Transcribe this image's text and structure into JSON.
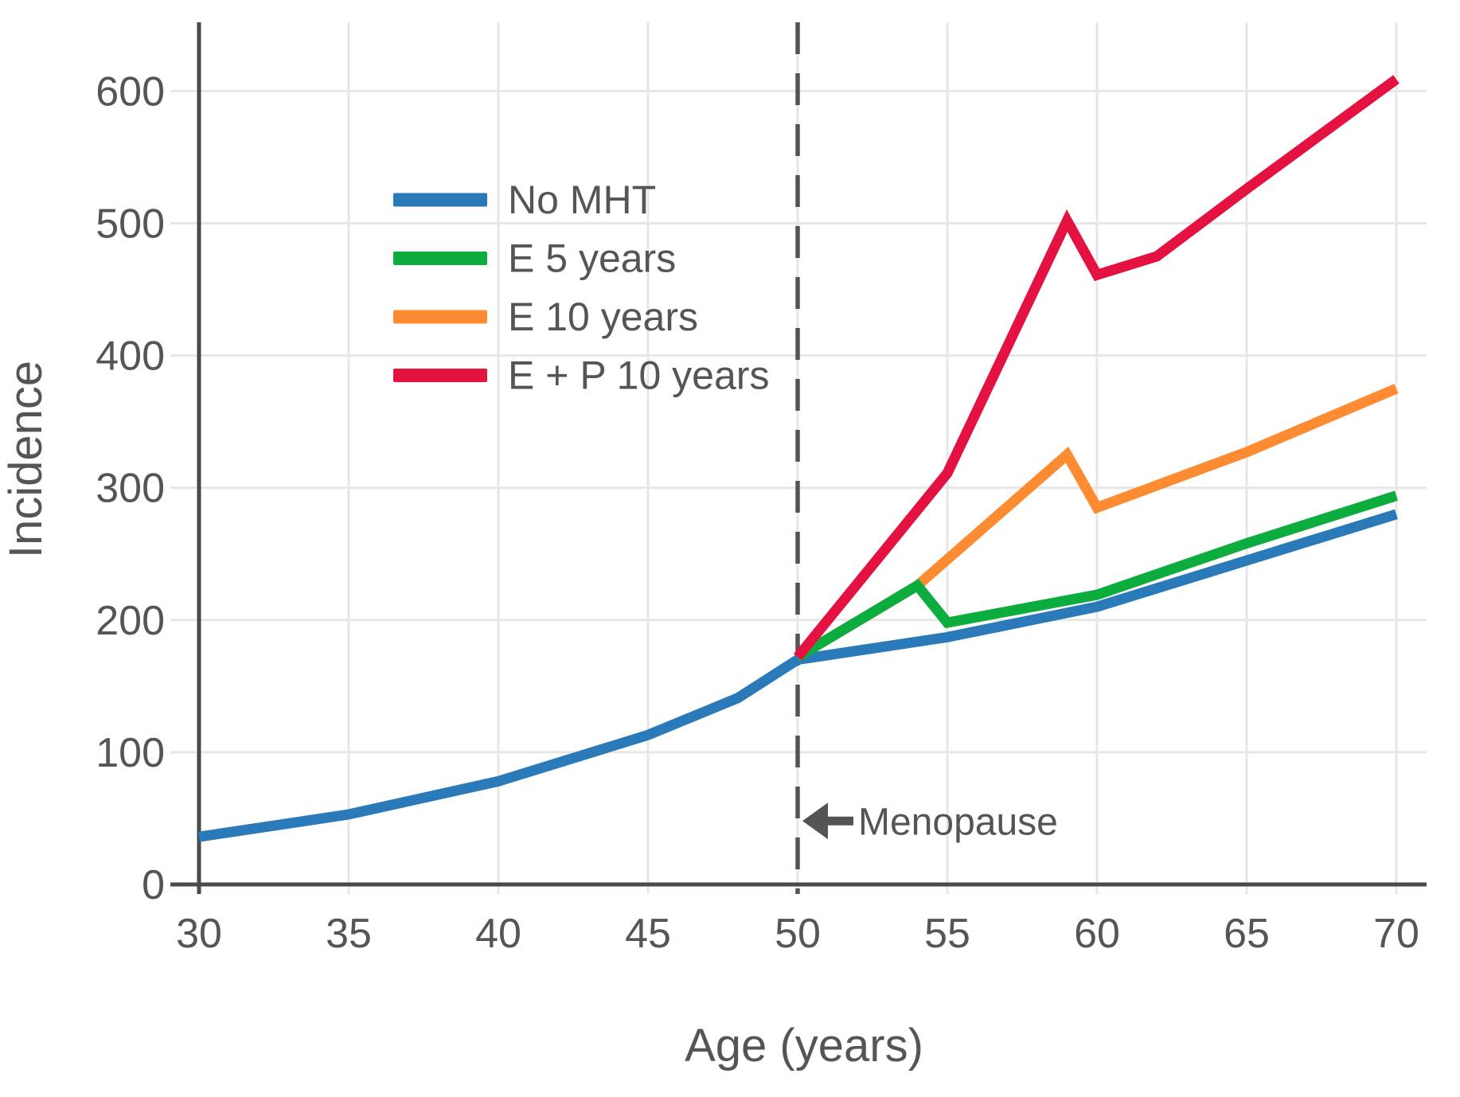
{
  "chart_data": {
    "type": "line",
    "title": "",
    "xlabel": "Age (years)",
    "ylabel": "Incidence",
    "x_ticks": [
      30,
      35,
      40,
      45,
      50,
      55,
      60,
      65,
      70
    ],
    "y_ticks": [
      0,
      100,
      200,
      300,
      400,
      500,
      600
    ],
    "xlim": [
      30,
      71
    ],
    "ylim": [
      0,
      650
    ],
    "grid": true,
    "legend_position": "upper-left-inside",
    "series": [
      {
        "name": "No MHT",
        "color": "#2a7ab9",
        "points": [
          [
            30,
            36
          ],
          [
            35,
            53
          ],
          [
            40,
            78
          ],
          [
            45,
            113
          ],
          [
            48,
            141
          ],
          [
            50,
            170
          ],
          [
            55,
            187
          ],
          [
            60,
            210
          ],
          [
            65,
            245
          ],
          [
            70,
            280
          ]
        ]
      },
      {
        "name": "E 5 years",
        "color": "#0cac3e",
        "points": [
          [
            50,
            172
          ],
          [
            54,
            226
          ],
          [
            55,
            198
          ],
          [
            60,
            219
          ],
          [
            65,
            258
          ],
          [
            70,
            294
          ]
        ]
      },
      {
        "name": "E 10 years",
        "color": "#fd8b31",
        "points": [
          [
            50,
            172
          ],
          [
            54,
            226
          ],
          [
            59,
            325
          ],
          [
            60,
            285
          ],
          [
            65,
            327
          ],
          [
            70,
            375
          ]
        ]
      },
      {
        "name": "E + P 10 years",
        "color": "#e31240",
        "points": [
          [
            50,
            172
          ],
          [
            55,
            311
          ],
          [
            59,
            502
          ],
          [
            60,
            461
          ],
          [
            62,
            475
          ],
          [
            65,
            526
          ],
          [
            70,
            609
          ]
        ]
      }
    ],
    "vline": {
      "x": 50,
      "style": "dashed",
      "color": "#545454"
    },
    "annotation": {
      "text": "Menopause",
      "arrow": "left",
      "at_x": 50,
      "at_value": 48
    },
    "colors": {
      "grid": "#e7e7e7",
      "axis": "#4a4a4a",
      "text": "#555555"
    }
  }
}
